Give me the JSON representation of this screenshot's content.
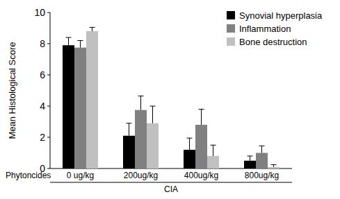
{
  "chart_data": {
    "type": "bar",
    "y_label": "Mean Histological Score",
    "x_label": "Phytoncides",
    "annotations": [
      "CIA"
    ],
    "categories": [
      "0 ug/kg",
      "200ug/kg",
      "400ug/kg",
      "800ug/kg"
    ],
    "series": [
      {
        "name": "Synovial hyperplasia",
        "color": "#000000",
        "values": [
          7.9,
          2.1,
          1.2,
          0.5
        ],
        "errors": [
          0.5,
          0.8,
          0.75,
          0.3
        ]
      },
      {
        "name": "Inflammation",
        "color": "#808080",
        "values": [
          7.75,
          3.75,
          2.8,
          1.0
        ],
        "errors": [
          0.45,
          0.9,
          1.0,
          0.45
        ]
      },
      {
        "name": "Bone destruction",
        "color": "#c0c0c0",
        "values": [
          8.8,
          2.9,
          0.8,
          0.1
        ],
        "errors": [
          0.25,
          1.1,
          0.7,
          0.15
        ]
      }
    ],
    "ylim": [
      0,
      10
    ],
    "yticks": [
      0,
      2,
      4,
      6,
      8,
      10
    ],
    "legend": "upper right",
    "grid": false
  }
}
